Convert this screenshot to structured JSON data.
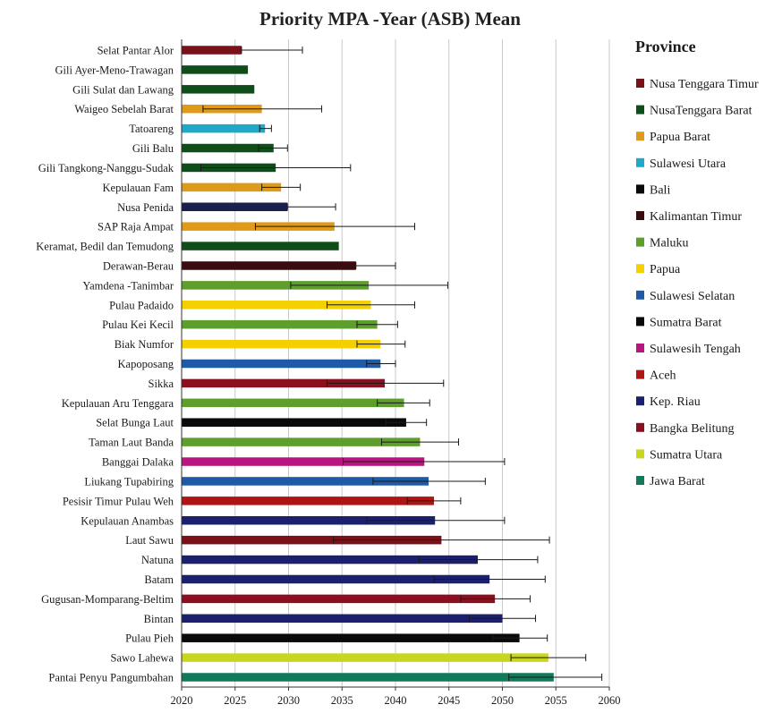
{
  "chart_data": {
    "type": "bar",
    "orientation": "horizontal",
    "title": "Priority MPA -Year (ASB) Mean",
    "xlabel": "",
    "ylabel": "",
    "xlim": [
      2020,
      2060
    ],
    "xticks": [
      2020,
      2025,
      2030,
      2035,
      2040,
      2045,
      2050,
      2055,
      2060
    ],
    "grid": true,
    "legend_title": "Province",
    "legend_position": "right",
    "legend": [
      {
        "name": "Nusa Tenggara Timur",
        "color": "#7a1118"
      },
      {
        "name": "NusaTenggara Barat",
        "color": "#0f4d1a"
      },
      {
        "name": "Papua Barat",
        "color": "#e09a1a"
      },
      {
        "name": "Sulawesi Utara",
        "color": "#1fa8c8"
      },
      {
        "name": "Bali",
        "color": "#0a0a0a"
      },
      {
        "name": "Kalimantan Timur",
        "color": "#3a0c10"
      },
      {
        "name": "Maluku",
        "color": "#5e9e2c"
      },
      {
        "name": "Papua",
        "color": "#f5d000"
      },
      {
        "name": "Sulawesi Selatan",
        "color": "#1f5aa6"
      },
      {
        "name": "Sumatra Barat",
        "color": "#0a0a0a"
      },
      {
        "name": "Sulawesih Tengah",
        "color": "#b8157e"
      },
      {
        "name": "Aceh",
        "color": "#b01515"
      },
      {
        "name": "Kep. Riau",
        "color": "#1a1f6e"
      },
      {
        "name": "Bangka Belitung",
        "color": "#8a1020"
      },
      {
        "name": "Sumatra Utara",
        "color": "#c8d620"
      },
      {
        "name": "Jawa Barat",
        "color": "#127a5a"
      }
    ],
    "bars": [
      {
        "label": "Selat Pantar Alor",
        "value": 2025.6,
        "err_low": 2025.6,
        "err_high": 2031.3,
        "color": "#7a1118"
      },
      {
        "label": "Gili Ayer-Meno-Trawagan",
        "value": 2026.2,
        "err_low": 2026.2,
        "err_high": 2026.2,
        "color": "#0f4d1a"
      },
      {
        "label": "Gili Sulat dan Lawang",
        "value": 2026.8,
        "err_low": 2026.8,
        "err_high": 2026.8,
        "color": "#0f4d1a"
      },
      {
        "label": "Waigeo Sebelah Barat",
        "value": 2027.5,
        "err_low": 2022.0,
        "err_high": 2033.1,
        "color": "#e09a1a"
      },
      {
        "label": "Tatoareng",
        "value": 2027.8,
        "err_low": 2027.3,
        "err_high": 2028.4,
        "color": "#1fa8c8"
      },
      {
        "label": "Gili Balu",
        "value": 2028.6,
        "err_low": 2027.2,
        "err_high": 2029.9,
        "color": "#0f4d1a"
      },
      {
        "label": "Gili Tangkong-Nanggu-Sudak",
        "value": 2028.8,
        "err_low": 2021.8,
        "err_high": 2035.8,
        "color": "#0f4d1a"
      },
      {
        "label": "Kepulauan Fam",
        "value": 2029.3,
        "err_low": 2027.5,
        "err_high": 2031.1,
        "color": "#e09a1a"
      },
      {
        "label": "Nusa Penida",
        "value": 2029.9,
        "err_low": 2029.9,
        "err_high": 2034.4,
        "color": "#1a1f4e"
      },
      {
        "label": "SAP Raja Ampat",
        "value": 2034.3,
        "err_low": 2026.9,
        "err_high": 2041.8,
        "color": "#e09a1a"
      },
      {
        "label": "Keramat, Bedil dan Temudong",
        "value": 2034.7,
        "err_low": 2034.7,
        "err_high": 2034.7,
        "color": "#0f4d1a"
      },
      {
        "label": "Derawan-Berau",
        "value": 2036.3,
        "err_low": 2036.3,
        "err_high": 2040.0,
        "color": "#3a0c10"
      },
      {
        "label": "Yamdena -Tanimbar",
        "value": 2037.5,
        "err_low": 2030.2,
        "err_high": 2044.9,
        "color": "#5e9e2c"
      },
      {
        "label": "Pulau Padaido",
        "value": 2037.7,
        "err_low": 2033.6,
        "err_high": 2041.8,
        "color": "#f5d000"
      },
      {
        "label": "Pulau Kei Kecil",
        "value": 2038.3,
        "err_low": 2036.4,
        "err_high": 2040.2,
        "color": "#5e9e2c"
      },
      {
        "label": "Biak Numfor",
        "value": 2038.6,
        "err_low": 2036.4,
        "err_high": 2040.9,
        "color": "#f5d000"
      },
      {
        "label": "Kapoposang",
        "value": 2038.6,
        "err_low": 2037.3,
        "err_high": 2040.0,
        "color": "#1f5aa6"
      },
      {
        "label": "Sikka",
        "value": 2039.0,
        "err_low": 2033.6,
        "err_high": 2044.5,
        "color": "#8a1020"
      },
      {
        "label": "Kepulauan Aru Tenggara",
        "value": 2040.8,
        "err_low": 2038.3,
        "err_high": 2043.2,
        "color": "#5e9e2c"
      },
      {
        "label": "Selat Bunga Laut",
        "value": 2041.0,
        "err_low": 2039.1,
        "err_high": 2042.9,
        "color": "#0a0a0a"
      },
      {
        "label": "Taman Laut Banda",
        "value": 2042.3,
        "err_low": 2038.7,
        "err_high": 2045.9,
        "color": "#5e9e2c"
      },
      {
        "label": "Banggai Dalaka",
        "value": 2042.7,
        "err_low": 2035.1,
        "err_high": 2050.2,
        "color": "#b8157e"
      },
      {
        "label": "Liukang Tupabiring",
        "value": 2043.1,
        "err_low": 2037.9,
        "err_high": 2048.4,
        "color": "#1f5aa6"
      },
      {
        "label": "Pesisir Timur Pulau Weh",
        "value": 2043.6,
        "err_low": 2041.1,
        "err_high": 2046.1,
        "color": "#b01515"
      },
      {
        "label": "Kepulauan Anambas",
        "value": 2043.7,
        "err_low": 2037.3,
        "err_high": 2050.2,
        "color": "#1a1f6e"
      },
      {
        "label": "Laut Sawu",
        "value": 2044.3,
        "err_low": 2034.2,
        "err_high": 2054.4,
        "color": "#7a1118"
      },
      {
        "label": "Natuna",
        "value": 2047.7,
        "err_low": 2042.2,
        "err_high": 2053.3,
        "color": "#1a1f6e"
      },
      {
        "label": "Batam",
        "value": 2048.8,
        "err_low": 2043.6,
        "err_high": 2054.0,
        "color": "#1a1f6e"
      },
      {
        "label": "Gugusan-Momparang-Beltim",
        "value": 2049.3,
        "err_low": 2046.1,
        "err_high": 2052.6,
        "color": "#8a1020"
      },
      {
        "label": "Bintan",
        "value": 2050.0,
        "err_low": 2046.9,
        "err_high": 2053.1,
        "color": "#1a1f6e"
      },
      {
        "label": "Pulau Pieh",
        "value": 2051.6,
        "err_low": 2049.1,
        "err_high": 2054.2,
        "color": "#0a0a0a"
      },
      {
        "label": "Sawo Lahewa",
        "value": 2054.3,
        "err_low": 2050.8,
        "err_high": 2057.8,
        "color": "#c8d620"
      },
      {
        "label": "Pantai Penyu Pangumbahan",
        "value": 2054.8,
        "err_low": 2050.6,
        "err_high": 2059.3,
        "color": "#127a5a"
      }
    ]
  }
}
